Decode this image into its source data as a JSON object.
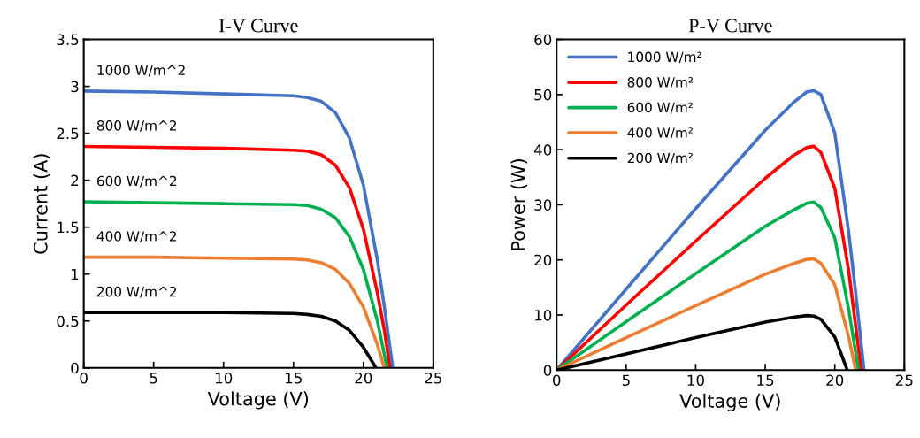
{
  "chart_data": [
    {
      "type": "line",
      "title": "I-V Curve",
      "xlabel": "Voltage (V)",
      "ylabel": "Current (A)",
      "xlim": [
        0,
        25
      ],
      "xticks": [
        0,
        5,
        10,
        15,
        20,
        25
      ],
      "ylim": [
        0,
        3.5
      ],
      "yticks": [
        0,
        0.5,
        1,
        1.5,
        2,
        2.5,
        3,
        3.5
      ],
      "grid": false,
      "legend": false,
      "marker": "none",
      "line_style": "solid",
      "series": [
        {
          "name": "1000 W/m^2",
          "color": "#4472c4",
          "x": [
            0,
            5,
            10,
            15,
            16,
            17,
            18,
            19,
            20,
            21,
            21.5,
            22.1
          ],
          "values": [
            2.95,
            2.94,
            2.92,
            2.9,
            2.88,
            2.84,
            2.72,
            2.45,
            1.95,
            1.15,
            0.65,
            0
          ]
        },
        {
          "name": "800 W/m^2",
          "color": "#ff0000",
          "x": [
            0,
            5,
            10,
            15,
            16,
            17,
            18,
            19,
            20,
            21,
            21.5,
            21.9
          ],
          "values": [
            2.36,
            2.35,
            2.34,
            2.32,
            2.31,
            2.27,
            2.16,
            1.92,
            1.48,
            0.8,
            0.4,
            0
          ]
        },
        {
          "name": "600 W/m^2",
          "color": "#00b050",
          "x": [
            0,
            5,
            10,
            15,
            16,
            17,
            18,
            19,
            20,
            21,
            21.7
          ],
          "values": [
            1.77,
            1.76,
            1.75,
            1.74,
            1.73,
            1.69,
            1.6,
            1.4,
            1.05,
            0.5,
            0
          ]
        },
        {
          "name": "400 W/m^2",
          "color": "#ed7d31",
          "x": [
            0,
            5,
            10,
            15,
            16,
            17,
            18,
            19,
            20,
            21,
            21.5
          ],
          "values": [
            1.18,
            1.18,
            1.17,
            1.16,
            1.15,
            1.12,
            1.05,
            0.9,
            0.65,
            0.25,
            0
          ]
        },
        {
          "name": "200 W/m^2",
          "color": "#000000",
          "x": [
            0,
            5,
            10,
            15,
            16,
            17,
            18,
            19,
            20,
            20.9
          ],
          "values": [
            0.59,
            0.59,
            0.59,
            0.58,
            0.57,
            0.55,
            0.5,
            0.4,
            0.22,
            0
          ]
        }
      ]
    },
    {
      "type": "line",
      "title": "P-V Curve",
      "xlabel": "Voltage (V)",
      "ylabel": "Power (W)",
      "xlim": [
        0,
        25
      ],
      "xticks": [
        0,
        5,
        10,
        15,
        20,
        25
      ],
      "ylim": [
        0,
        60
      ],
      "yticks": [
        0,
        10,
        20,
        30,
        40,
        50,
        60
      ],
      "grid": false,
      "legend": "top left",
      "marker": "none",
      "line_style": "solid",
      "series": [
        {
          "name": "1000 W/m²",
          "color": "#4472c4",
          "x": [
            0,
            5,
            10,
            15,
            17,
            18,
            18.5,
            19,
            20,
            21,
            21.5,
            22.1
          ],
          "values": [
            0,
            14.7,
            29.3,
            43.5,
            48.5,
            50.5,
            50.7,
            50,
            43,
            25,
            14,
            0
          ]
        },
        {
          "name": "800 W/m²",
          "color": "#ff0000",
          "x": [
            0,
            5,
            10,
            15,
            17,
            18,
            18.5,
            19,
            20,
            21,
            21.9
          ],
          "values": [
            0,
            11.8,
            23.4,
            34.8,
            38.9,
            40.4,
            40.6,
            39.5,
            33,
            18,
            0
          ]
        },
        {
          "name": "600 W/m²",
          "color": "#00b050",
          "x": [
            0,
            5,
            10,
            15,
            17,
            18,
            18.5,
            19,
            20,
            21,
            21.7
          ],
          "values": [
            0,
            8.8,
            17.5,
            26.1,
            29,
            30.3,
            30.5,
            29.5,
            24,
            11,
            0
          ]
        },
        {
          "name": "400 W/m²",
          "color": "#ed7d31",
          "x": [
            0,
            5,
            10,
            15,
            17,
            18,
            18.5,
            19,
            20,
            21,
            21.5
          ],
          "values": [
            0,
            5.9,
            11.7,
            17.4,
            19.3,
            20.1,
            20.2,
            19.4,
            15.5,
            6,
            0
          ]
        },
        {
          "name": "200 W/m²",
          "color": "#000000",
          "x": [
            0,
            5,
            10,
            15,
            17,
            18,
            18.5,
            19,
            20,
            20.9
          ],
          "values": [
            0,
            2.95,
            5.9,
            8.7,
            9.6,
            9.9,
            9.8,
            9.2,
            6,
            0
          ]
        }
      ]
    }
  ]
}
